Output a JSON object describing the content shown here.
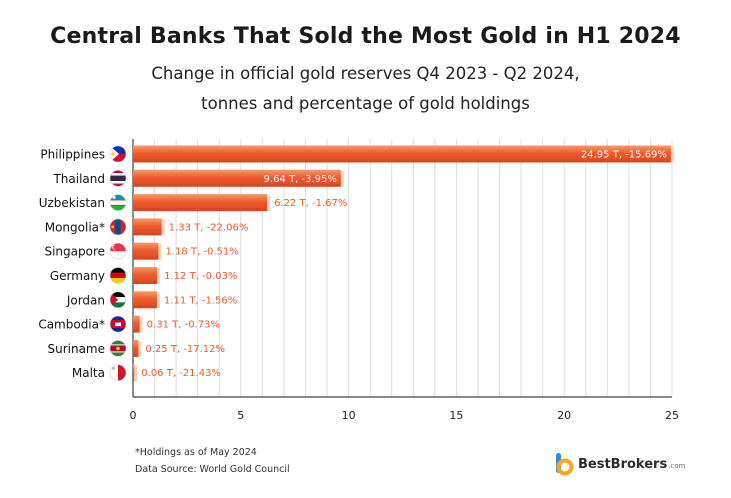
{
  "title": "Central Banks That Sold the Most Gold in H1 2024",
  "subtitle_line1": "Change in official gold reserves Q4 2023 - Q2 2024,",
  "subtitle_line2": "tonnes and percentage of gold holdings",
  "footnote": "*Holdings as of May 2024",
  "source": "Data Source: World Gold Council",
  "brand": {
    "name": "BestBrokers",
    "suffix": ".com"
  },
  "colors": {
    "bar_main": "#ee5a2e",
    "bar_light": "#f69a64",
    "bar_edge": "#fbd2b4",
    "label_text": "#ffffff",
    "label_outside": "#ee5a2e",
    "grid": "#dddddd",
    "axis": "#444444",
    "brand_blue": "#2f8fd8",
    "brand_orange": "#f5a623"
  },
  "chart_data": {
    "type": "bar",
    "orientation": "horizontal",
    "categories": [
      "Philippines",
      "Thailand",
      "Uzbekistan",
      "Mongolia*",
      "Singapore",
      "Germany",
      "Jordan",
      "Cambodia*",
      "Suriname",
      "Malta"
    ],
    "flags": [
      "philippines-flag-icon",
      "thailand-flag-icon",
      "uzbekistan-flag-icon",
      "mongolia-flag-icon",
      "singapore-flag-icon",
      "germany-flag-icon",
      "jordan-flag-icon",
      "cambodia-flag-icon",
      "suriname-flag-icon",
      "malta-flag-icon"
    ],
    "values": [
      24.95,
      9.64,
      6.22,
      1.33,
      1.18,
      1.12,
      1.11,
      0.31,
      0.25,
      0.06
    ],
    "data_labels": [
      "24.95 T, -15.69%",
      "9.64 T, -3.95%",
      "6.22 T, -1.67%",
      "1.33 T, -22.06%",
      "1.18 T, -0.51%",
      "1.12 T, -0.03%",
      "1.11 T, -1.56%",
      "0.31 T, -0.73%",
      "0.25 T, -17.12%",
      "0.06 T, -21.43%"
    ],
    "xticks": [
      0,
      5,
      10,
      15,
      20,
      25
    ],
    "xtick_labels": [
      "0",
      "5",
      "10",
      "15",
      "20",
      "25"
    ],
    "xlim": [
      0,
      25
    ],
    "minor_grid_step": 1,
    "grid": true
  }
}
